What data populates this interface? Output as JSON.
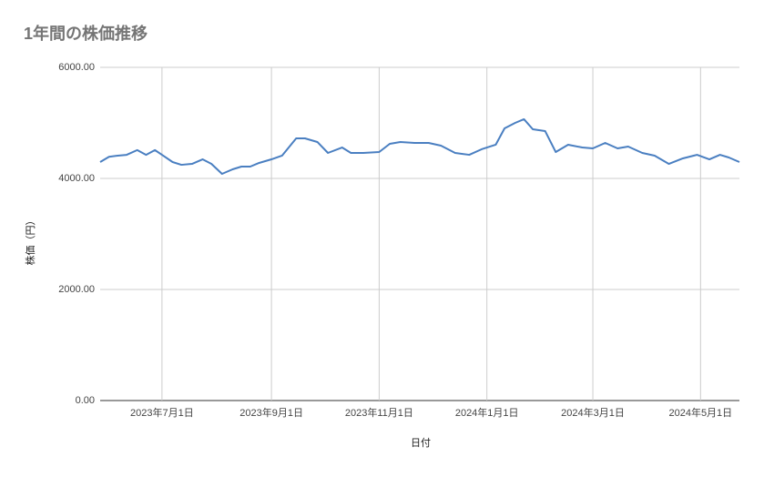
{
  "chart_data": {
    "type": "line",
    "title": "1年間の株価推移",
    "x_label": "日付",
    "y_label": "株価（円）",
    "x": [
      "2023-05-27",
      "2023-06-01",
      "2023-06-06",
      "2023-06-11",
      "2023-06-17",
      "2023-06-22",
      "2023-06-27",
      "2023-07-01",
      "2023-07-07",
      "2023-07-12",
      "2023-07-18",
      "2023-07-24",
      "2023-07-29",
      "2023-08-04",
      "2023-08-10",
      "2023-08-15",
      "2023-08-20",
      "2023-08-25",
      "2023-09-01",
      "2023-09-07",
      "2023-09-15",
      "2023-09-20",
      "2023-09-27",
      "2023-10-03",
      "2023-10-11",
      "2023-10-16",
      "2023-10-23",
      "2023-11-01",
      "2023-11-07",
      "2023-11-13",
      "2023-11-21",
      "2023-11-29",
      "2023-12-06",
      "2023-12-14",
      "2023-12-22",
      "2023-12-29",
      "2024-01-06",
      "2024-01-11",
      "2024-01-17",
      "2024-01-22",
      "2024-01-27",
      "2024-02-03",
      "2024-02-09",
      "2024-02-16",
      "2024-02-24",
      "2024-03-01",
      "2024-03-08",
      "2024-03-15",
      "2024-03-21",
      "2024-03-29",
      "2024-04-05",
      "2024-04-13",
      "2024-04-21",
      "2024-04-29",
      "2024-05-06",
      "2024-05-12",
      "2024-05-17",
      "2024-05-23"
    ],
    "series": [
      {
        "name": "株価",
        "color": "#4a7fc1",
        "values": [
          4295,
          4390,
          4410,
          4425,
          4510,
          4425,
          4510,
          4425,
          4295,
          4245,
          4262,
          4344,
          4262,
          4082,
          4164,
          4213,
          4213,
          4279,
          4344,
          4410,
          4721,
          4721,
          4656,
          4459,
          4557,
          4459,
          4459,
          4475,
          4623,
          4656,
          4639,
          4639,
          4590,
          4459,
          4425,
          4525,
          4607,
          4902,
          5000,
          5066,
          4885,
          4852,
          4475,
          4607,
          4557,
          4541,
          4639,
          4541,
          4574,
          4459,
          4410,
          4262,
          4361,
          4425,
          4344,
          4425,
          4377,
          4295
        ]
      }
    ],
    "xlim": [
      "2023-05-27",
      "2024-05-23"
    ],
    "xticks": [
      {
        "value": "2023-07-01",
        "label": "2023年7月1日"
      },
      {
        "value": "2023-09-01",
        "label": "2023年9月1日"
      },
      {
        "value": "2023-11-01",
        "label": "2023年11月1日"
      },
      {
        "value": "2024-01-01",
        "label": "2024年1月1日"
      },
      {
        "value": "2024-03-01",
        "label": "2024年3月1日"
      },
      {
        "value": "2024-05-01",
        "label": "2024年5月1日"
      }
    ],
    "ylim": [
      0,
      6000
    ],
    "yticks": [
      {
        "value": 0,
        "label": "0.00"
      },
      {
        "value": 2000,
        "label": "2000.00"
      },
      {
        "value": 4000,
        "label": "4000.00"
      },
      {
        "value": 6000,
        "label": "6000.00"
      }
    ],
    "grid": true
  }
}
